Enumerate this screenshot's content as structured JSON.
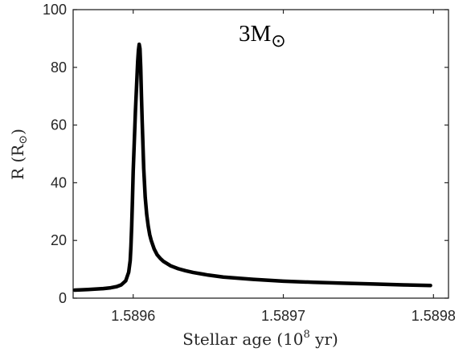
{
  "chart_data": {
    "type": "line",
    "xlabel": {
      "text": "Stellar age (10",
      "exp": "8",
      "unit": " yr)"
    },
    "ylabel": {
      "text": "R (R",
      "sub": "⊙",
      "close": ")"
    },
    "annotation": {
      "text": "3M",
      "sub": "⊙"
    },
    "xlim": [
      1.58956,
      1.58981
    ],
    "ylim": [
      0,
      100
    ],
    "x_ticks": [
      1.5896,
      1.5897,
      1.5898
    ],
    "x_tick_labels": [
      "1.5896",
      "1.5897",
      "1.5898"
    ],
    "y_ticks": [
      0,
      20,
      40,
      60,
      80,
      100
    ],
    "y_tick_labels": [
      "0",
      "20",
      "40",
      "60",
      "80",
      "100"
    ],
    "grid": false,
    "line_color": "#000000",
    "series": [
      {
        "x": [
          1.589561,
          1.58957,
          1.58958,
          1.589585,
          1.589589,
          1.589592,
          1.589595,
          1.589597,
          1.589598,
          1.5895985,
          1.589599,
          1.5895995,
          1.5896,
          1.5896015,
          1.589603,
          1.5896035,
          1.589604,
          1.5896045,
          1.589605,
          1.5896055,
          1.589606,
          1.5896065,
          1.589607,
          1.589608,
          1.589609,
          1.58961,
          1.589611,
          1.589612,
          1.589614,
          1.589616,
          1.589618,
          1.58962,
          1.589625,
          1.58963,
          1.589635,
          1.58964,
          1.58965,
          1.58966,
          1.58968,
          1.5897,
          1.58972,
          1.58974,
          1.58976,
          1.58978,
          1.589798
        ],
        "y": [
          2.8,
          3.0,
          3.3,
          3.6,
          4.0,
          4.6,
          6.0,
          9.0,
          13.0,
          18.0,
          25.0,
          34.0,
          44.0,
          65.0,
          82.0,
          86.0,
          88.0,
          86.5,
          80.0,
          70.0,
          61.0,
          53.0,
          45.0,
          35.0,
          29.0,
          25.0,
          22.0,
          20.0,
          17.0,
          15.0,
          13.8,
          12.8,
          11.2,
          10.2,
          9.5,
          8.9,
          8.0,
          7.3,
          6.5,
          5.9,
          5.5,
          5.2,
          4.9,
          4.6,
          4.4
        ]
      }
    ]
  }
}
